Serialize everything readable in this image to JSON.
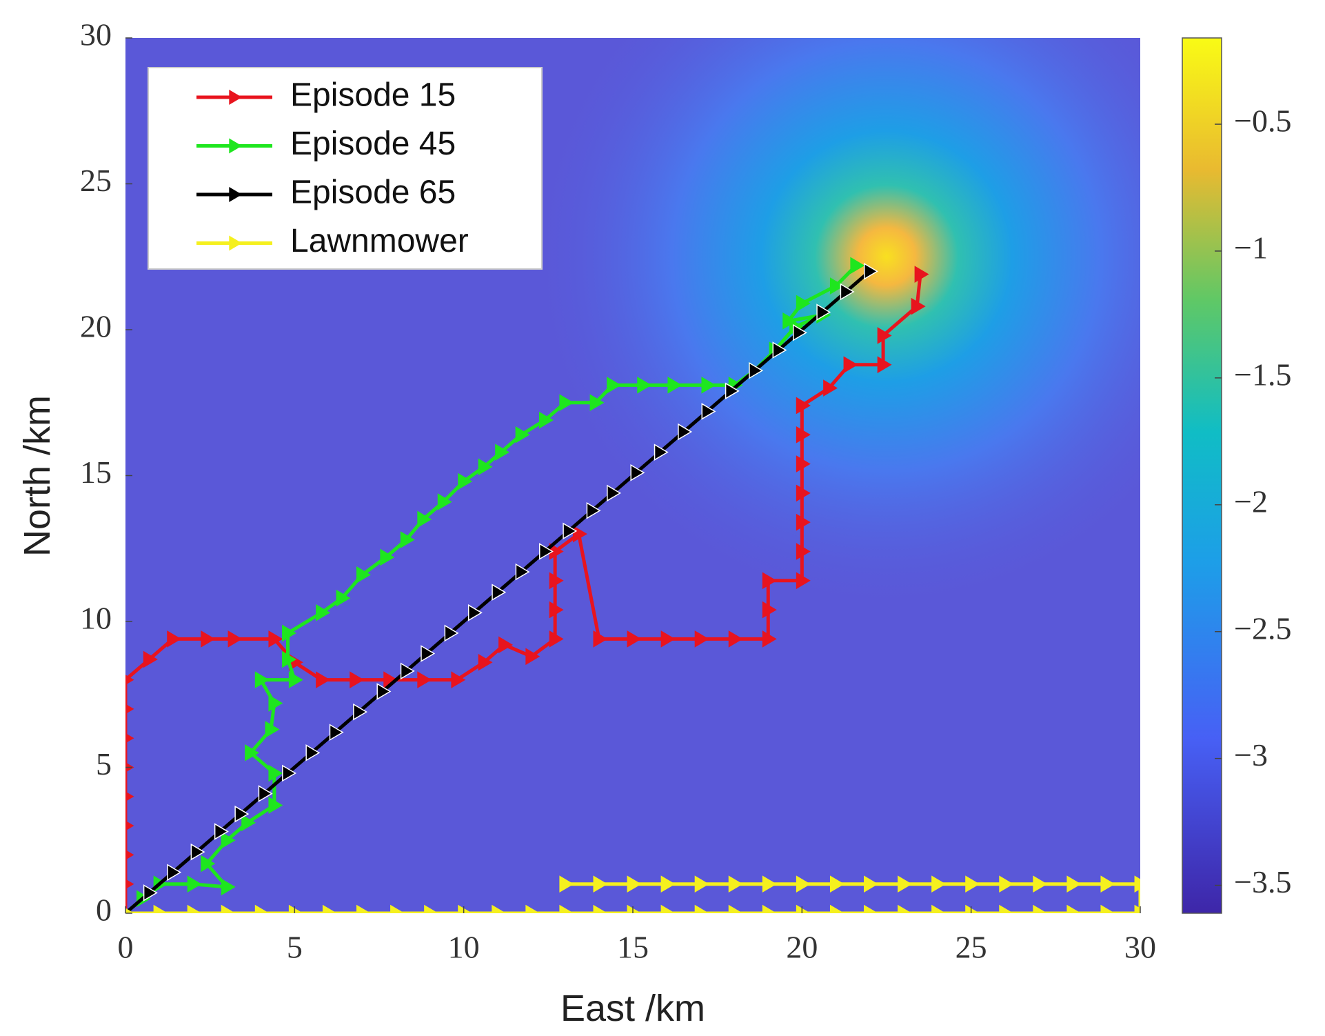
{
  "chart_data": {
    "type": "line",
    "xlabel": "East /km",
    "ylabel": "North /km",
    "xlim": [
      0,
      30
    ],
    "ylim": [
      0,
      30
    ],
    "xticks": [
      0,
      5,
      10,
      15,
      20,
      25,
      30
    ],
    "yticks": [
      0,
      5,
      10,
      15,
      20,
      25,
      30
    ],
    "grid": false,
    "legend": "upper left",
    "series": [
      {
        "name": "Episode 15",
        "color": "#e8141e",
        "x": [
          0,
          0,
          0,
          0,
          0,
          0,
          0,
          0,
          0,
          0.7,
          1.4,
          2.4,
          3.2,
          4.4,
          5,
          5.8,
          6.8,
          7.8,
          8.8,
          9.8,
          10.6,
          11.2,
          12,
          12.7,
          12.7,
          12.7,
          12.7,
          13.4,
          14,
          15,
          16,
          17,
          18,
          19,
          19,
          19,
          20,
          20,
          20,
          20,
          20,
          20,
          20,
          20,
          20.8,
          21.4,
          22.4,
          22.4,
          23.4,
          23.5
        ],
        "y": [
          0,
          1,
          2,
          3,
          4,
          5,
          6,
          7,
          8,
          8.7,
          9.4,
          9.4,
          9.4,
          9.4,
          8.6,
          8,
          8,
          8,
          8,
          8,
          8.6,
          9.2,
          8.8,
          9.4,
          10.4,
          11.4,
          12.4,
          13,
          9.4,
          9.4,
          9.4,
          9.4,
          9.4,
          9.4,
          10.4,
          11.4,
          11.4,
          12.4,
          13.4,
          14.4,
          15.4,
          16.4,
          17.4,
          17.4,
          18,
          18.8,
          18.8,
          19.8,
          20.8,
          21.9
        ]
      },
      {
        "name": "Episode 45",
        "color": "#1ee61e",
        "x": [
          0,
          0.5,
          1,
          2,
          3,
          2.4,
          3,
          3.6,
          4.4,
          4.4,
          3.7,
          4.3,
          4.4,
          4,
          5,
          4.8,
          4.8,
          5.8,
          6.4,
          7,
          7.7,
          8.3,
          8.8,
          9.4,
          10,
          10.6,
          11.1,
          11.7,
          12.4,
          13,
          13.9,
          14.4,
          15.3,
          16.2,
          17.2,
          18,
          18.6,
          19.2,
          19.8,
          20.6,
          19.6,
          20,
          21,
          21.6
        ],
        "y": [
          0,
          0.5,
          1,
          1,
          0.9,
          1.7,
          2.5,
          3.1,
          3.7,
          4.8,
          5.5,
          6.3,
          7.2,
          8,
          8,
          8.7,
          9.6,
          10.3,
          10.8,
          11.6,
          12.2,
          12.8,
          13.5,
          14.1,
          14.8,
          15.3,
          15.8,
          16.4,
          16.9,
          17.5,
          17.5,
          18.1,
          18.1,
          18.1,
          18.1,
          18.1,
          18.6,
          19.3,
          20.1,
          20.5,
          20.3,
          20.9,
          21.5,
          22.2
        ]
      },
      {
        "name": "Episode 65",
        "color": "#000000",
        "x": [
          0,
          0.7,
          1.4,
          2.1,
          2.8,
          3.4,
          4.1,
          4.8,
          5.5,
          6.2,
          6.9,
          7.6,
          8.3,
          8.9,
          9.6,
          10.3,
          11,
          11.7,
          12.4,
          13.1,
          13.8,
          14.4,
          15.1,
          15.8,
          16.5,
          17.2,
          17.9,
          18.6,
          19.3,
          19.9,
          20.6,
          21.3,
          22
        ],
        "y": [
          0,
          0.7,
          1.4,
          2.1,
          2.8,
          3.4,
          4.1,
          4.8,
          5.5,
          6.2,
          6.9,
          7.6,
          8.3,
          8.9,
          9.6,
          10.3,
          11,
          11.7,
          12.4,
          13.1,
          13.8,
          14.4,
          15.1,
          15.8,
          16.5,
          17.2,
          17.9,
          18.6,
          19.3,
          19.9,
          20.6,
          21.3,
          22
        ]
      },
      {
        "name": "Lawnmower",
        "color": "#f5f01e",
        "x": [
          0,
          1,
          2,
          3,
          4,
          5,
          6,
          7,
          8,
          9,
          10,
          11,
          12,
          13,
          14,
          15,
          16,
          17,
          18,
          19,
          20,
          21,
          22,
          23,
          24,
          25,
          26,
          27,
          28,
          29,
          30,
          30,
          29,
          28,
          27,
          26,
          25,
          24,
          23,
          22,
          21,
          20,
          19,
          18,
          17,
          16,
          15,
          14,
          13
        ],
        "y": [
          0,
          0,
          0,
          0,
          0,
          0,
          0,
          0,
          0,
          0,
          0,
          0,
          0,
          0,
          0,
          0,
          0,
          0,
          0,
          0,
          0,
          0,
          0,
          0,
          0,
          0,
          0,
          0,
          0,
          0,
          0,
          1,
          1,
          1,
          1,
          1,
          1,
          1,
          1,
          1,
          1,
          1,
          1,
          1,
          1,
          1,
          1,
          1,
          1
        ]
      }
    ],
    "colorbar": {
      "lim": [
        -3.61,
        -0.16
      ],
      "ticks": [
        {
          "value": -3.5,
          "label": "−3.5"
        },
        {
          "value": -3,
          "label": "−3"
        },
        {
          "value": -2.5,
          "label": "−2.5"
        },
        {
          "value": -2,
          "label": "−2"
        },
        {
          "value": -1.5,
          "label": "−1.5"
        },
        {
          "value": -1,
          "label": "−1"
        },
        {
          "value": -0.5,
          "label": "−0.5"
        }
      ]
    }
  }
}
